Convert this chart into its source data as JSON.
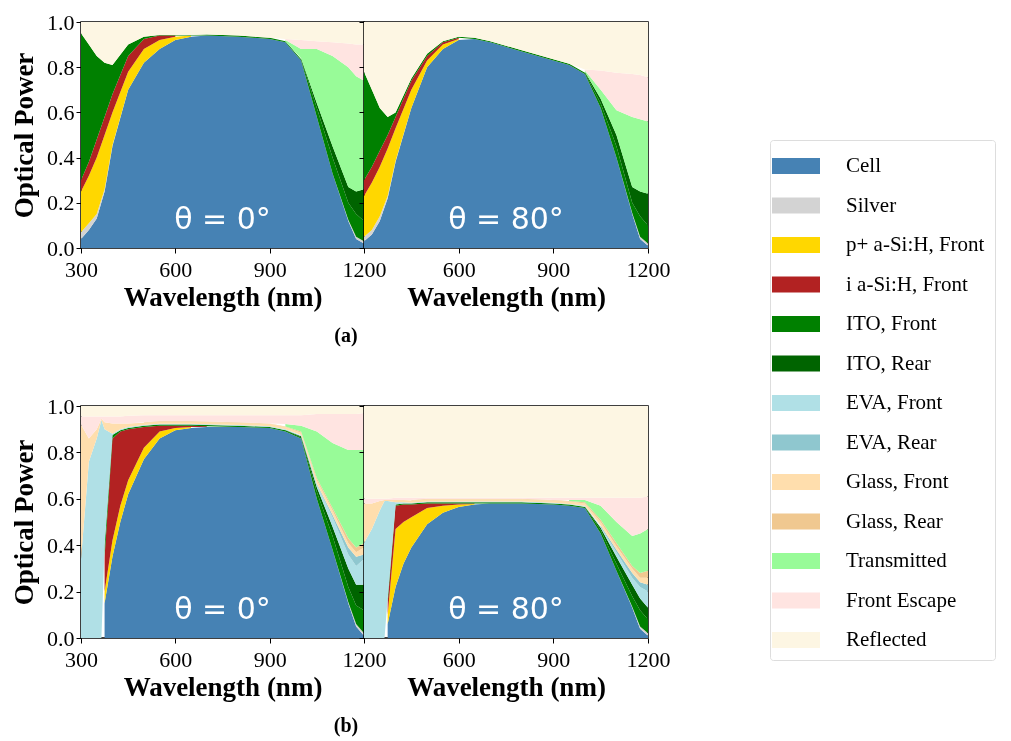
{
  "chart_data": [
    {
      "type": "area",
      "stacked": true,
      "xlabel": "Wavelength (nm)",
      "ylabel": "Optical Power",
      "xlim": [
        300,
        1200
      ],
      "xticks": [
        300,
        600,
        900,
        1200
      ],
      "ylim": [
        0,
        1
      ],
      "yticks": [
        {
          "value": 0,
          "label": "0.0"
        },
        0.2,
        0.4,
        0.6,
        0.8,
        {
          "value": 1,
          "label": "1.0"
        }
      ],
      "legend": false,
      "annotations": [
        "θ = 0°",
        "(a)"
      ],
      "x": [
        300,
        325,
        350,
        375,
        400,
        450,
        500,
        550,
        600,
        650,
        700,
        800,
        900,
        950,
        1000,
        1050,
        1100,
        1150,
        1175,
        1200
      ],
      "series": [
        {
          "color": "#4682b4",
          "values": [
            0.04,
            0.08,
            0.13,
            0.25,
            0.45,
            0.7,
            0.82,
            0.88,
            0.92,
            0.935,
            0.94,
            0.935,
            0.925,
            0.91,
            0.83,
            0.58,
            0.33,
            0.12,
            0.04,
            0.02
          ]
        },
        {
          "color": "#d3d3d3",
          "values": [
            0.03,
            0.03,
            0.02,
            0.01,
            0.005,
            null,
            null,
            null,
            null,
            null,
            null,
            null,
            null,
            null,
            null,
            null,
            null,
            0.005,
            0.01,
            0.01
          ]
        },
        {
          "color": "#ffd700",
          "values": [
            0.18,
            0.21,
            0.25,
            0.24,
            0.145,
            0.08,
            0.06,
            0.04,
            0.015,
            0.005,
            null,
            null,
            null,
            null,
            null,
            null,
            null,
            null,
            null,
            null
          ]
        },
        {
          "color": "#b22222",
          "values": [
            0.05,
            0.06,
            0.08,
            0.08,
            0.08,
            0.07,
            0.045,
            0.02,
            0.005,
            null,
            null,
            null,
            null,
            null,
            null,
            null,
            null,
            null,
            null,
            null
          ]
        },
        {
          "color": "#008000",
          "values": [
            0.65,
            0.52,
            0.37,
            0.24,
            0.13,
            0.05,
            0.01,
            0.002,
            0.003,
            0.003,
            0.005,
            0.005,
            0.005,
            0.005,
            0.005,
            0.04,
            0.07,
            0.075,
            0.1,
            0.09
          ]
        },
        {
          "color": "#006400",
          "values": [
            null,
            null,
            null,
            null,
            null,
            null,
            null,
            null,
            null,
            null,
            null,
            null,
            null,
            null,
            0.005,
            0.02,
            0.05,
            0.07,
            0.1,
            0.14
          ]
        },
        {
          "color": "#98fb98",
          "values": [
            null,
            null,
            null,
            null,
            null,
            null,
            null,
            null,
            null,
            null,
            null,
            null,
            null,
            0.005,
            0.04,
            0.24,
            0.4,
            0.53,
            0.51,
            0.48
          ]
        },
        {
          "color": "#ffe4e1",
          "values": [
            null,
            null,
            null,
            null,
            null,
            null,
            null,
            null,
            null,
            null,
            null,
            null,
            null,
            0.005,
            0.04,
            0.035,
            0.06,
            0.105,
            0.14,
            0.16
          ]
        },
        {
          "color": "#fdf6e3",
          "values": [
            0.05,
            0.1,
            0.15,
            0.18,
            0.19,
            0.1,
            0.065,
            0.058,
            0.057,
            0.057,
            0.055,
            0.06,
            0.07,
            0.075,
            0.08,
            0.085,
            0.09,
            0.095,
            0.1,
            0.1
          ]
        }
      ]
    },
    {
      "type": "area",
      "stacked": true,
      "xlabel": "Wavelength (nm)",
      "xlim": [
        300,
        1200
      ],
      "xticks": [
        600,
        900,
        1200
      ],
      "ylim": [
        0,
        1
      ],
      "yticks": [
        {
          "value": 0,
          "label": null
        },
        {
          "value": 0.2,
          "label": null
        },
        {
          "value": 0.4,
          "label": null
        },
        {
          "value": 0.6,
          "label": null
        },
        {
          "value": 0.8,
          "label": null
        },
        {
          "value": 1,
          "label": null
        }
      ],
      "tick_labels": "x",
      "legend": false,
      "annotations": [
        "θ = 80°"
      ],
      "x": [
        300,
        325,
        350,
        375,
        400,
        450,
        500,
        550,
        600,
        650,
        700,
        800,
        900,
        950,
        1000,
        1050,
        1100,
        1150,
        1175,
        1200
      ],
      "series": [
        {
          "color": "#4682b4",
          "values": [
            0.03,
            0.06,
            0.12,
            0.22,
            0.38,
            0.62,
            0.8,
            0.88,
            0.92,
            0.925,
            0.91,
            0.87,
            0.83,
            0.81,
            0.77,
            0.62,
            0.4,
            0.15,
            0.04,
            0.01
          ]
        },
        {
          "color": "#d3d3d3",
          "values": [
            0.02,
            0.02,
            0.02,
            0.01,
            0.005,
            null,
            null,
            null,
            null,
            null,
            null,
            null,
            null,
            null,
            null,
            null,
            null,
            0.005,
            0.01,
            0.01
          ]
        },
        {
          "color": "#ffd700",
          "values": [
            0.18,
            0.21,
            0.22,
            0.21,
            0.145,
            0.08,
            0.03,
            0.02,
            0.005,
            null,
            null,
            null,
            null,
            null,
            null,
            null,
            null,
            null,
            null,
            null
          ]
        },
        {
          "color": "#b22222",
          "values": [
            0.07,
            0.07,
            0.07,
            0.06,
            0.05,
            0.04,
            0.02,
            0.01,
            0.005,
            null,
            null,
            null,
            null,
            null,
            null,
            null,
            null,
            null,
            null,
            null
          ]
        },
        {
          "color": "#008000",
          "values": [
            0.48,
            0.34,
            0.19,
            0.08,
            0.02,
            0.01,
            0.01,
            0.005,
            0.005,
            0.005,
            0.005,
            0.005,
            0.005,
            0.005,
            0.005,
            0.02,
            0.05,
            0.045,
            0.09,
            0.08
          ]
        },
        {
          "color": "#006400",
          "values": [
            null,
            null,
            null,
            null,
            null,
            null,
            null,
            null,
            null,
            null,
            null,
            null,
            null,
            null,
            0.005,
            0.02,
            0.05,
            0.07,
            0.11,
            0.14
          ]
        },
        {
          "color": "#98fb98",
          "values": [
            null,
            null,
            null,
            null,
            null,
            null,
            null,
            null,
            null,
            null,
            null,
            null,
            null,
            null,
            0.005,
            0.04,
            0.11,
            0.31,
            0.32,
            0.32
          ]
        },
        {
          "color": "#ffe4e1",
          "values": [
            null,
            null,
            null,
            null,
            null,
            null,
            null,
            null,
            null,
            null,
            null,
            null,
            null,
            null,
            0.005,
            0.085,
            0.165,
            0.19,
            0.195,
            0.195
          ]
        },
        {
          "color": "#fdf6e3",
          "values": [
            0.22,
            0.3,
            0.38,
            0.42,
            0.4,
            0.25,
            0.14,
            0.085,
            0.065,
            0.07,
            0.085,
            0.125,
            0.165,
            0.185,
            0.21,
            0.215,
            0.225,
            0.23,
            0.235,
            0.245
          ]
        }
      ]
    },
    {
      "type": "area",
      "stacked": true,
      "xlabel": "Wavelength (nm)",
      "ylabel": "Optical Power",
      "xlim": [
        300,
        1200
      ],
      "xticks": [
        300,
        600,
        900,
        1200
      ],
      "ylim": [
        0,
        1
      ],
      "yticks": [
        {
          "value": 0,
          "label": "0.0"
        },
        0.2,
        0.4,
        0.6,
        0.8,
        {
          "value": 1,
          "label": "1.0"
        }
      ],
      "legend": false,
      "annotations": [
        "θ = 0°",
        "(b)"
      ],
      "x": [
        300,
        325,
        350,
        365,
        375,
        400,
        425,
        450,
        500,
        550,
        600,
        650,
        700,
        800,
        900,
        950,
        1000,
        1050,
        1100,
        1150,
        1175,
        1200
      ],
      "series": [
        {
          "color": "#4682b4",
          "values": [
            null,
            null,
            null,
            null,
            0.15,
            0.35,
            0.5,
            0.62,
            0.77,
            0.86,
            0.895,
            0.905,
            0.91,
            0.91,
            0.905,
            0.89,
            0.86,
            0.6,
            0.38,
            0.15,
            0.05,
            0.01
          ]
        },
        {
          "color": "#d3d3d3",
          "values": [
            null,
            null,
            null,
            null,
            null,
            null,
            null,
            null,
            null,
            null,
            null,
            null,
            null,
            null,
            null,
            null,
            null,
            null,
            null,
            0.005,
            0.01,
            0.01
          ]
        },
        {
          "color": "#ffd700",
          "values": [
            null,
            null,
            null,
            null,
            0.05,
            0.07,
            0.07,
            0.06,
            0.05,
            0.03,
            0.01,
            0.005,
            null,
            null,
            null,
            null,
            null,
            null,
            null,
            null,
            null,
            null
          ]
        },
        {
          "color": "#b22222",
          "values": [
            null,
            null,
            null,
            null,
            0.15,
            0.44,
            0.32,
            0.22,
            0.09,
            0.025,
            0.01,
            0.005,
            0.003,
            null,
            null,
            null,
            null,
            null,
            null,
            null,
            null,
            null
          ]
        },
        {
          "color": "#008000",
          "values": [
            null,
            null,
            null,
            null,
            0.05,
            0.015,
            0.005,
            0.005,
            0.005,
            0.005,
            0.005,
            0.005,
            0.005,
            0.005,
            0.005,
            0.005,
            0.005,
            0.03,
            0.06,
            0.065,
            0.08,
            0.1
          ]
        },
        {
          "color": "#006400",
          "values": [
            null,
            null,
            null,
            null,
            null,
            null,
            null,
            null,
            null,
            null,
            null,
            null,
            null,
            null,
            null,
            0.002,
            0.005,
            0.02,
            0.04,
            0.08,
            0.09,
            0.11
          ]
        },
        {
          "color": "#b0e0e6",
          "values": [
            0.34,
            0.76,
            0.86,
            0.94,
            0.5,
            0.005,
            0.005,
            0.005,
            0.003,
            0.003,
            0.003,
            0.003,
            0.003,
            0.003,
            0.003,
            0.003,
            0.003,
            0.01,
            0.04,
            0.06,
            0.08,
            0.11
          ]
        },
        {
          "color": "#8fc7cf",
          "values": [
            null,
            null,
            null,
            null,
            null,
            null,
            null,
            null,
            null,
            null,
            null,
            null,
            null,
            null,
            null,
            null,
            0.002,
            0.005,
            0.01,
            0.03,
            0.04,
            0.02
          ]
        },
        {
          "color": "#ffdead",
          "values": [
            0.58,
            0.1,
            0.04,
            0.005,
            0.03,
            0.045,
            0.025,
            0.015,
            0.01,
            0.01,
            0.01,
            0.01,
            0.01,
            0.01,
            0.01,
            0.01,
            0.01,
            0.015,
            0.02,
            0.02,
            0.02,
            0.03
          ]
        },
        {
          "color": "#f0c890",
          "values": [
            null,
            null,
            null,
            null,
            null,
            null,
            null,
            null,
            0.002,
            0.002,
            0.002,
            0.002,
            0.002,
            0.002,
            0.002,
            0.002,
            0.005,
            0.01,
            0.01,
            0.02,
            0.02,
            0.02
          ]
        },
        {
          "color": "#98fb98",
          "values": [
            null,
            null,
            null,
            null,
            null,
            null,
            null,
            null,
            null,
            null,
            null,
            null,
            null,
            null,
            null,
            0.01,
            0.025,
            0.2,
            0.28,
            0.38,
            0.42,
            0.4
          ]
        },
        {
          "color": "#ffe4e1",
          "values": [
            0.035,
            0.095,
            0.055,
            0.01,
            0.025,
            0.03,
            0.03,
            0.033,
            0.03,
            0.025,
            0.025,
            0.025,
            0.027,
            0.03,
            0.035,
            0.038,
            0.045,
            0.075,
            0.125,
            0.155,
            0.155,
            0.16
          ]
        },
        {
          "color": "#fdf6e3",
          "values": [
            0.045,
            0.045,
            0.045,
            0.045,
            0.045,
            0.045,
            0.045,
            0.042,
            0.04,
            0.04,
            0.04,
            0.04,
            0.04,
            0.04,
            0.04,
            0.04,
            0.04,
            0.035,
            0.035,
            0.035,
            0.035,
            0.03
          ]
        }
      ]
    },
    {
      "type": "area",
      "stacked": true,
      "xlabel": "Wavelength (nm)",
      "xlim": [
        300,
        1200
      ],
      "xticks": [
        600,
        900,
        1200
      ],
      "ylim": [
        0,
        1
      ],
      "yticks": [
        {
          "value": 0,
          "label": null
        },
        {
          "value": 0.2,
          "label": null
        },
        {
          "value": 0.4,
          "label": null
        },
        {
          "value": 0.6,
          "label": null
        },
        {
          "value": 0.8,
          "label": null
        },
        {
          "value": 1,
          "label": null
        }
      ],
      "tick_labels": "x",
      "legend": "right",
      "annotations": [
        "θ = 80°"
      ],
      "x": [
        300,
        325,
        350,
        365,
        375,
        400,
        425,
        450,
        500,
        550,
        600,
        650,
        700,
        800,
        900,
        950,
        1000,
        1050,
        1100,
        1150,
        1175,
        1200
      ],
      "series": [
        {
          "name": "Cell",
          "color": "#4682b4",
          "values": [
            null,
            null,
            null,
            null,
            0.06,
            0.22,
            0.32,
            0.39,
            0.49,
            0.54,
            0.565,
            0.575,
            0.58,
            0.58,
            0.575,
            0.57,
            0.56,
            0.45,
            0.29,
            0.13,
            0.04,
            0.01
          ]
        },
        {
          "name": "Silver",
          "color": "#d3d3d3",
          "values": [
            null,
            null,
            null,
            null,
            null,
            null,
            null,
            null,
            null,
            null,
            null,
            null,
            null,
            null,
            null,
            null,
            null,
            null,
            null,
            0.005,
            0.01,
            0.01
          ]
        },
        {
          "name": "p+ a-Si:H, Front",
          "color": "#ffd700",
          "values": [
            null,
            null,
            null,
            null,
            0.04,
            0.25,
            0.18,
            0.13,
            0.07,
            0.03,
            0.01,
            0.003,
            null,
            null,
            null,
            null,
            null,
            null,
            null,
            null,
            null,
            null
          ]
        },
        {
          "name": "i a-Si:H, Front",
          "color": "#b22222",
          "values": [
            null,
            null,
            null,
            null,
            0.05,
            0.1,
            0.075,
            0.055,
            0.02,
            0.01,
            0.005,
            0.002,
            null,
            null,
            null,
            null,
            null,
            null,
            null,
            null,
            null,
            null
          ]
        },
        {
          "name": "ITO, Front",
          "color": "#008000",
          "values": [
            null,
            null,
            null,
            null,
            0.02,
            0.005,
            0.005,
            0.005,
            0.005,
            0.005,
            0.005,
            0.005,
            0.005,
            0.005,
            0.005,
            0.005,
            0.005,
            0.015,
            0.03,
            0.045,
            0.07,
            0.06
          ]
        },
        {
          "name": "ITO, Rear",
          "color": "#006400",
          "values": [
            null,
            null,
            null,
            null,
            null,
            null,
            null,
            null,
            null,
            null,
            null,
            null,
            null,
            null,
            null,
            null,
            0.002,
            0.01,
            0.03,
            0.05,
            0.05,
            0.05
          ]
        },
        {
          "name": "EVA, Front",
          "color": "#b0e0e6",
          "values": [
            0.41,
            0.47,
            0.55,
            0.59,
            0.42,
            0.01,
            0.005,
            0.003,
            0.003,
            0.003,
            0.003,
            0.003,
            0.003,
            0.003,
            0.003,
            0.003,
            0.003,
            0.005,
            0.02,
            0.03,
            0.05,
            0.07
          ]
        },
        {
          "name": "EVA, Rear",
          "color": "#8fc7cf",
          "values": [
            null,
            null,
            null,
            null,
            null,
            null,
            null,
            null,
            null,
            null,
            null,
            null,
            null,
            null,
            null,
            null,
            null,
            0.005,
            0.01,
            0.02,
            0.02,
            0.03
          ]
        },
        {
          "name": "Glass, Front",
          "color": "#ffdead",
          "values": [
            0.17,
            0.11,
            0.04,
            0.005,
            0.005,
            0.01,
            0.01,
            0.01,
            0.01,
            0.01,
            0.01,
            0.01,
            0.01,
            0.01,
            0.01,
            0.01,
            0.01,
            0.015,
            0.015,
            0.02,
            0.02,
            0.03
          ]
        },
        {
          "name": "Glass, Rear",
          "color": "#f0c890",
          "values": [
            null,
            null,
            null,
            null,
            null,
            null,
            null,
            0.002,
            0.002,
            0.002,
            0.002,
            0.002,
            0.002,
            0.002,
            0.002,
            0.002,
            0.005,
            0.01,
            0.015,
            0.01,
            0.02,
            0.03
          ]
        },
        {
          "name": "Transmitted",
          "color": "#98fb98",
          "values": [
            null,
            null,
            null,
            null,
            null,
            null,
            null,
            null,
            null,
            null,
            null,
            null,
            null,
            null,
            null,
            0.005,
            0.01,
            0.06,
            0.09,
            0.13,
            0.17,
            0.18
          ]
        },
        {
          "name": "Front Escape",
          "color": "#ffe4e1",
          "values": [
            0.02,
            0.02,
            0.01,
            0.005,
            0.005,
            0.01,
            0.01,
            0.01,
            0.005,
            0.005,
            0.005,
            0.005,
            0.005,
            0.005,
            0.01,
            0.01,
            0.01,
            0.035,
            0.105,
            0.165,
            0.155,
            0.14
          ]
        },
        {
          "name": "Reflected",
          "color": "#fdf6e3",
          "values": [
            0.4,
            0.4,
            0.4,
            0.4,
            0.4,
            0.395,
            0.395,
            0.395,
            0.395,
            0.395,
            0.395,
            0.395,
            0.395,
            0.395,
            0.395,
            0.395,
            0.395,
            0.395,
            0.395,
            0.395,
            0.395,
            0.39
          ]
        }
      ]
    }
  ]
}
